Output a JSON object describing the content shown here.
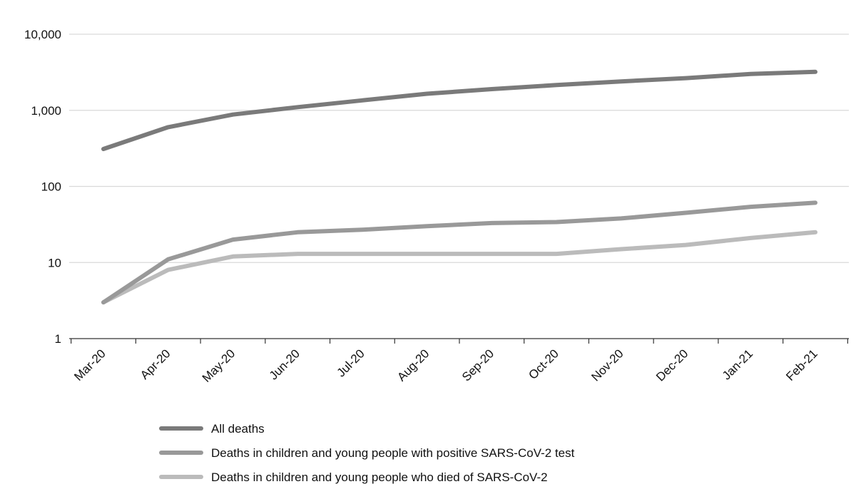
{
  "chart_data": {
    "type": "line",
    "title": "",
    "xlabel": "",
    "ylabel": "",
    "y_scale": "log",
    "ylim": [
      1,
      10000
    ],
    "y_ticks": [
      "1",
      "10",
      "100",
      "1,000",
      "10,000"
    ],
    "categories": [
      "Mar-20",
      "Apr-20",
      "May-20",
      "Jun-20",
      "Jul-20",
      "Aug-20",
      "Sep-20",
      "Oct-20",
      "Nov-20",
      "Dec-20",
      "Jan-21",
      "Feb-21"
    ],
    "grid": true,
    "legend_position": "bottom",
    "series": [
      {
        "name": "All deaths",
        "color": "#7a7a7a",
        "values": [
          310,
          600,
          880,
          1100,
          1350,
          1650,
          1900,
          2150,
          2400,
          2650,
          3000,
          3200
        ]
      },
      {
        "name": "Deaths in children and young people with positive SARS-CoV-2 test",
        "color": "#999999",
        "values": [
          3,
          11,
          20,
          25,
          27,
          30,
          33,
          34,
          38,
          45,
          54,
          61
        ]
      },
      {
        "name": "Deaths in children and young people who died of SARS-CoV-2",
        "color": "#bbbbbb",
        "values": [
          3,
          8,
          12,
          13,
          13,
          13,
          13,
          13,
          15,
          17,
          21,
          25
        ]
      }
    ]
  }
}
